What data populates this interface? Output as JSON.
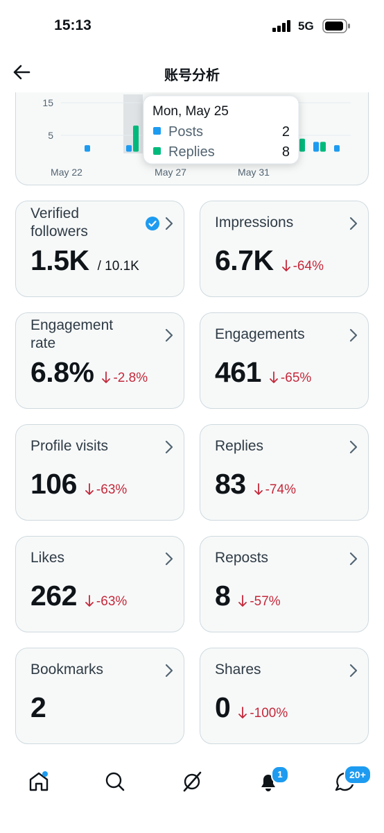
{
  "status_bar": {
    "time": "15:13",
    "network": "5G"
  },
  "header": {
    "title": "账号分析"
  },
  "chart": {
    "yticks": [
      5,
      15
    ],
    "days": [
      "May 22",
      null,
      null,
      null,
      null,
      "May 27",
      null,
      null,
      null,
      "May 31",
      null,
      null,
      null,
      null
    ],
    "series": [
      {
        "name": "Posts",
        "color": "#1d9bf0",
        "values": [
          0,
          2,
          0,
          2,
          0,
          0,
          0,
          0,
          0,
          0,
          0,
          0,
          3,
          2
        ]
      },
      {
        "name": "Replies",
        "color": "#00ba7c",
        "values": [
          0,
          0,
          0,
          8,
          0,
          0,
          0,
          0,
          0,
          0,
          0,
          4,
          3,
          0
        ]
      }
    ],
    "tooltip": {
      "date": "Mon, May 25",
      "day_index": 3
    }
  },
  "cards": [
    {
      "title": "Verified followers",
      "value": "1.5K",
      "total": "/ 10.1K",
      "verified": true
    },
    {
      "title": "Impressions",
      "value": "6.7K",
      "change": "-64%"
    },
    {
      "title": "Engagement rate",
      "value": "6.8%",
      "change": "-2.8%"
    },
    {
      "title": "Engagements",
      "value": 461,
      "change": "-65%"
    },
    {
      "title": "Profile visits",
      "value": 106,
      "change": "-63%"
    },
    {
      "title": "Replies",
      "value": 83,
      "change": "-74%"
    },
    {
      "title": "Likes",
      "value": 262,
      "change": "-63%"
    },
    {
      "title": "Reposts",
      "value": 8,
      "change": "-57%"
    },
    {
      "title": "Bookmarks",
      "value": 2
    },
    {
      "title": "Shares",
      "value": 0,
      "change": "-100%"
    }
  ],
  "nav": {
    "notifications_badge": "1",
    "messages_badge": "20+"
  }
}
